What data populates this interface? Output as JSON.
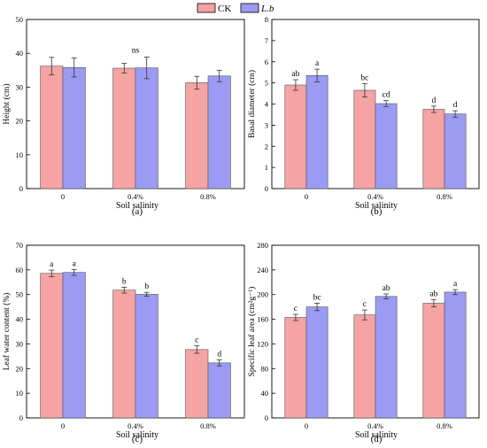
{
  "legend": {
    "position": "top-center",
    "items": [
      {
        "label": "CK",
        "italic": false,
        "color": "#f5a3a3"
      },
      {
        "label": "L.b",
        "italic": true,
        "color": "#9b9bf3"
      }
    ]
  },
  "chart_data": [
    {
      "type": "bar",
      "panel_label": "(a)",
      "categories": [
        "0",
        "0.4%",
        "0.8%"
      ],
      "xlabel": "Soil salinity",
      "ylabel": "Height (cm)",
      "ylim": [
        0,
        50
      ],
      "yticks": [
        0,
        10,
        20,
        30,
        40,
        50
      ],
      "series": [
        {
          "name": "CK",
          "values": [
            36.2,
            35.6,
            31.3
          ],
          "errors": [
            2.6,
            1.4,
            1.9
          ]
        },
        {
          "name": "L.b",
          "values": [
            35.8,
            35.7,
            33.3
          ],
          "errors": [
            2.8,
            3.2,
            1.7
          ]
        }
      ],
      "group_labels": [
        "",
        "ns",
        ""
      ],
      "bar_labels": null
    },
    {
      "type": "bar",
      "panel_label": "(b)",
      "categories": [
        "0",
        "0.4%",
        "0.8%"
      ],
      "xlabel": "Soil salinity",
      "ylabel": "Basal diameter (cm)",
      "ylim": [
        0,
        8
      ],
      "yticks": [
        0,
        1,
        2,
        3,
        4,
        5,
        6,
        7,
        8
      ],
      "series": [
        {
          "name": "CK",
          "values": [
            4.9,
            4.65,
            3.75
          ],
          "errors": [
            0.25,
            0.32,
            0.15
          ],
          "labels": [
            "ab",
            "bc",
            "d"
          ]
        },
        {
          "name": "L.b",
          "values": [
            5.35,
            4.02,
            3.53
          ],
          "errors": [
            0.3,
            0.14,
            0.15
          ],
          "labels": [
            "a",
            "cd",
            "d"
          ]
        }
      ],
      "group_labels": null
    },
    {
      "type": "bar",
      "panel_label": "(c)",
      "categories": [
        "0",
        "0.4%",
        "0.8%"
      ],
      "xlabel": "Soil salinity",
      "ylabel": "Leaf water content (%)",
      "ylim": [
        0,
        70
      ],
      "yticks": [
        0,
        10,
        20,
        30,
        40,
        50,
        60,
        70
      ],
      "series": [
        {
          "name": "CK",
          "values": [
            58.6,
            51.8,
            27.7
          ],
          "errors": [
            1.3,
            1.2,
            1.5
          ],
          "labels": [
            "a",
            "b",
            "c"
          ]
        },
        {
          "name": "L.b",
          "values": [
            59.0,
            50.1,
            22.3
          ],
          "errors": [
            1.2,
            0.8,
            1.2
          ],
          "labels": [
            "a",
            "b",
            "d"
          ]
        }
      ],
      "group_labels": null
    },
    {
      "type": "bar",
      "panel_label": "(d)",
      "categories": [
        "0",
        "0.4%",
        "0.8%"
      ],
      "xlabel": "Soil salinity",
      "ylabel": "Specific leaf area (cm²g⁻¹)",
      "ylim": [
        0,
        280
      ],
      "yticks": [
        0,
        40,
        80,
        120,
        160,
        200,
        240,
        280
      ],
      "series": [
        {
          "name": "CK",
          "values": [
            163,
            167,
            186
          ],
          "errors": [
            5,
            8,
            6
          ],
          "labels": [
            "c",
            "c",
            "ab"
          ]
        },
        {
          "name": "L.b",
          "values": [
            180,
            197,
            204
          ],
          "errors": [
            6,
            4,
            4
          ],
          "labels": [
            "bc",
            "ab",
            "a"
          ]
        }
      ],
      "group_labels": null
    }
  ]
}
